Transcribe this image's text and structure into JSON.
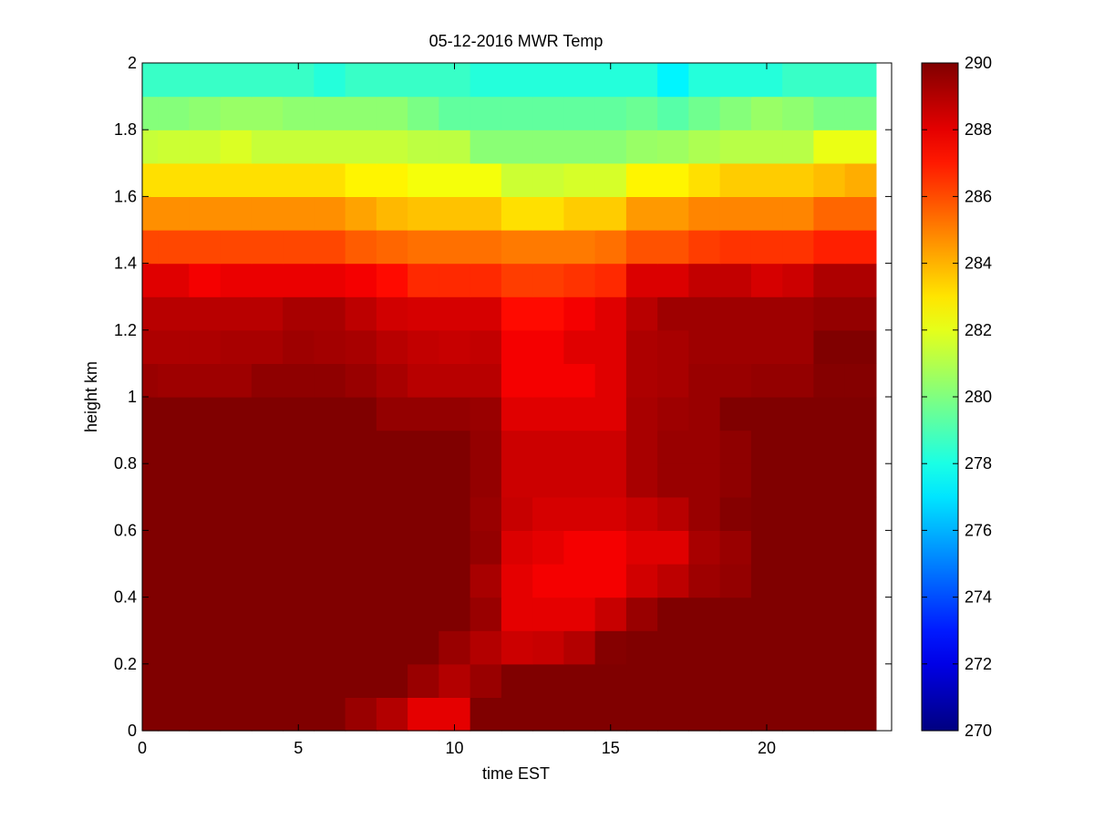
{
  "chart_data": {
    "type": "heatmap",
    "title": "05-12-2016 MWR Temp",
    "xlabel": "time EST",
    "ylabel": "height km",
    "xlim": [
      0,
      24
    ],
    "ylim": [
      0,
      2
    ],
    "x_ticks": [
      "0",
      "5",
      "10",
      "15",
      "20"
    ],
    "y_ticks": [
      "0",
      "0.2",
      "0.4",
      "0.6",
      "0.8",
      "1",
      "1.2",
      "1.4",
      "1.6",
      "1.8",
      "2"
    ],
    "colorbar": {
      "colormap": "jet",
      "range": [
        270,
        290
      ],
      "ticks": [
        "270",
        "272",
        "274",
        "276",
        "278",
        "280",
        "282",
        "284",
        "286",
        "288",
        "290"
      ]
    },
    "x_start": 0,
    "x_step": 1,
    "heights": [
      0.05,
      0.15,
      0.25,
      0.35,
      0.45,
      0.55,
      0.65,
      0.75,
      0.85,
      0.95,
      1.05,
      1.15,
      1.25,
      1.35,
      1.45,
      1.55,
      1.65,
      1.75,
      1.85,
      1.95
    ],
    "values_by_height": [
      [
        290,
        290,
        290,
        290,
        290,
        290,
        290,
        289.5,
        289,
        288,
        288,
        290,
        290,
        290,
        290,
        290,
        290,
        290,
        290,
        290,
        290,
        290,
        290,
        290
      ],
      [
        290,
        290,
        290,
        290,
        290,
        290,
        290,
        290,
        290,
        289.5,
        289,
        289.5,
        290,
        290,
        290,
        290,
        290,
        290,
        290,
        290,
        290,
        290,
        290,
        290
      ],
      [
        290,
        290,
        290,
        290,
        290,
        290,
        290,
        290,
        290,
        290,
        289.5,
        289,
        288.5,
        288.6,
        289,
        289.9,
        290,
        290,
        290,
        290,
        290,
        290,
        290,
        290
      ],
      [
        290,
        290,
        290,
        290,
        290,
        290,
        290,
        290,
        290,
        290,
        290,
        289.5,
        288,
        288,
        288,
        288.6,
        289.5,
        290,
        290,
        290,
        290,
        290,
        290,
        290
      ],
      [
        290,
        290,
        290,
        290,
        290,
        290,
        290,
        290,
        290,
        290,
        290,
        289.2,
        288,
        287.7,
        287.7,
        287.7,
        288.4,
        288.8,
        289.4,
        289.6,
        290,
        290,
        290,
        290
      ],
      [
        290,
        290,
        290,
        290,
        290,
        290,
        290,
        290,
        290,
        290,
        290,
        289.6,
        288.2,
        288,
        287.7,
        287.7,
        288.1,
        288.1,
        289.2,
        289.5,
        290,
        290,
        290,
        290
      ],
      [
        290,
        290,
        290,
        290,
        290,
        290,
        290,
        290,
        290,
        290,
        290,
        289.5,
        288.6,
        288.3,
        288.3,
        288.3,
        288.6,
        288.9,
        289.5,
        289.9,
        290,
        290,
        290,
        290
      ],
      [
        290,
        290,
        290,
        290,
        290,
        290,
        290,
        290,
        290,
        290,
        290,
        289.6,
        288.5,
        288.5,
        288.5,
        288.5,
        289.2,
        289.5,
        289.5,
        289.7,
        290,
        290,
        290,
        290
      ],
      [
        290,
        290,
        290,
        290,
        290,
        290,
        290,
        290,
        290,
        290,
        290,
        289.6,
        288.5,
        288.5,
        288.5,
        288.5,
        289.2,
        289.5,
        289.5,
        289.7,
        290,
        290,
        290,
        290
      ],
      [
        290,
        290,
        290,
        290,
        290,
        290,
        290,
        290,
        289.6,
        289.6,
        289.6,
        289.5,
        288.1,
        288.1,
        288.1,
        288.1,
        289.2,
        289.4,
        289.5,
        290,
        290,
        290,
        290,
        290
      ],
      [
        289.5,
        289.4,
        289.4,
        289.4,
        289.7,
        289.7,
        289.7,
        289.5,
        289.2,
        288.9,
        288.9,
        288.9,
        287.7,
        287.7,
        287.7,
        288.1,
        289.1,
        289.2,
        289.5,
        289.5,
        289.6,
        289.6,
        289.9,
        289.9
      ],
      [
        289.1,
        289.1,
        289.1,
        289.2,
        289.2,
        289.4,
        289.3,
        289.2,
        288.9,
        288.7,
        288.6,
        288.7,
        287.7,
        287.7,
        288.1,
        288.1,
        289.1,
        289.2,
        289.4,
        289.4,
        289.4,
        289.4,
        290,
        290
      ],
      [
        288.9,
        288.9,
        288.9,
        288.9,
        288.9,
        289.2,
        289.2,
        288.8,
        288.4,
        288.3,
        288.3,
        288.3,
        287.3,
        287.3,
        287.7,
        288.1,
        288.9,
        289.4,
        289.4,
        289.4,
        289.4,
        289.4,
        289.6,
        289.6
      ],
      [
        288.1,
        288.1,
        287.7,
        287.9,
        287.9,
        287.9,
        287.9,
        287.7,
        287.3,
        286.7,
        286.7,
        286.7,
        286.3,
        286.3,
        286.5,
        286.7,
        288.2,
        288.2,
        288.7,
        288.7,
        288.3,
        288.5,
        289.1,
        289.1
      ],
      [
        286.1,
        286.1,
        286.1,
        286.1,
        286.1,
        286.1,
        286.1,
        285.7,
        285.5,
        285.3,
        285.3,
        285.3,
        285.1,
        285.1,
        285.1,
        285.3,
        285.9,
        285.9,
        286.3,
        286.5,
        286.5,
        286.5,
        286.9,
        286.9
      ],
      [
        284.7,
        284.7,
        284.7,
        284.7,
        284.7,
        284.7,
        284.7,
        284.3,
        283.9,
        283.7,
        283.7,
        283.7,
        283.1,
        283.1,
        283.5,
        283.5,
        284.5,
        284.5,
        284.9,
        284.9,
        284.9,
        284.9,
        285.5,
        285.5
      ],
      [
        283.1,
        283.1,
        283.1,
        283.1,
        283.1,
        283.1,
        283.1,
        282.7,
        282.7,
        282.3,
        282.3,
        282.3,
        281.5,
        281.5,
        281.7,
        281.7,
        282.7,
        282.7,
        283.1,
        283.5,
        283.5,
        283.5,
        283.8,
        284.1
      ],
      [
        281.4,
        281.5,
        281.5,
        281.8,
        281.4,
        281.4,
        281.4,
        281.4,
        281.4,
        281.2,
        281.2,
        280.2,
        280.2,
        280.2,
        280.2,
        280.2,
        280.5,
        280.6,
        280.9,
        281.1,
        281.1,
        281.1,
        282.1,
        282.1
      ],
      [
        280.1,
        280.1,
        280.3,
        280.5,
        280.5,
        280.3,
        280.3,
        280.3,
        280.3,
        279.9,
        279.4,
        279.4,
        279.4,
        279.4,
        279.4,
        279.4,
        279.6,
        279.2,
        279.7,
        280.1,
        280.5,
        280.3,
        279.9,
        279.9
      ],
      [
        278.6,
        278.6,
        278.6,
        278.6,
        278.6,
        278.6,
        278.2,
        278.6,
        278.6,
        278.6,
        278.6,
        278.2,
        278.2,
        278.2,
        278.2,
        278.2,
        278.2,
        277.3,
        278.2,
        278.2,
        278.2,
        278.6,
        278.6,
        278.6
      ]
    ]
  }
}
